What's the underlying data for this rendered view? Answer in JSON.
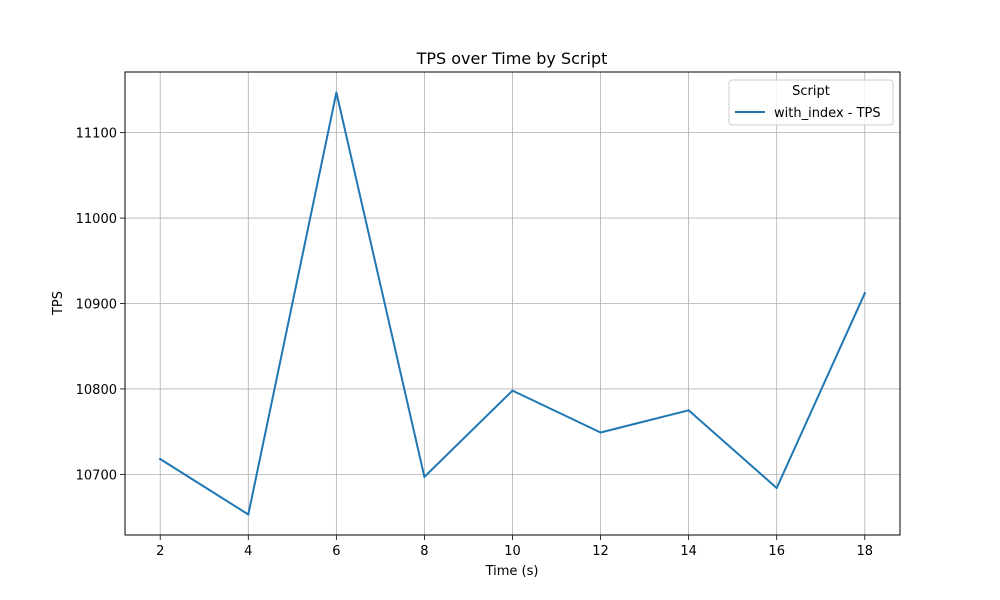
{
  "chart_data": {
    "type": "line",
    "title": "TPS over Time by Script",
    "xlabel": "Time (s)",
    "ylabel": "TPS",
    "x": [
      2,
      4,
      6,
      8,
      10,
      12,
      14,
      16,
      18
    ],
    "series": [
      {
        "name": "with_index - TPS",
        "color": "#1f77b4",
        "values": [
          10718,
          10653,
          11147,
          10697,
          10798,
          10749,
          10775,
          10684,
          10912
        ]
      }
    ],
    "xlim": [
      1.2,
      18.8
    ],
    "ylim": [
      10629,
      11171
    ],
    "xticks": [
      2,
      4,
      6,
      8,
      10,
      12,
      14,
      16,
      18
    ],
    "yticks": [
      10700,
      10800,
      10900,
      11000,
      11100
    ],
    "grid": true,
    "legend": {
      "title": "Script",
      "placement": "top-right"
    }
  }
}
